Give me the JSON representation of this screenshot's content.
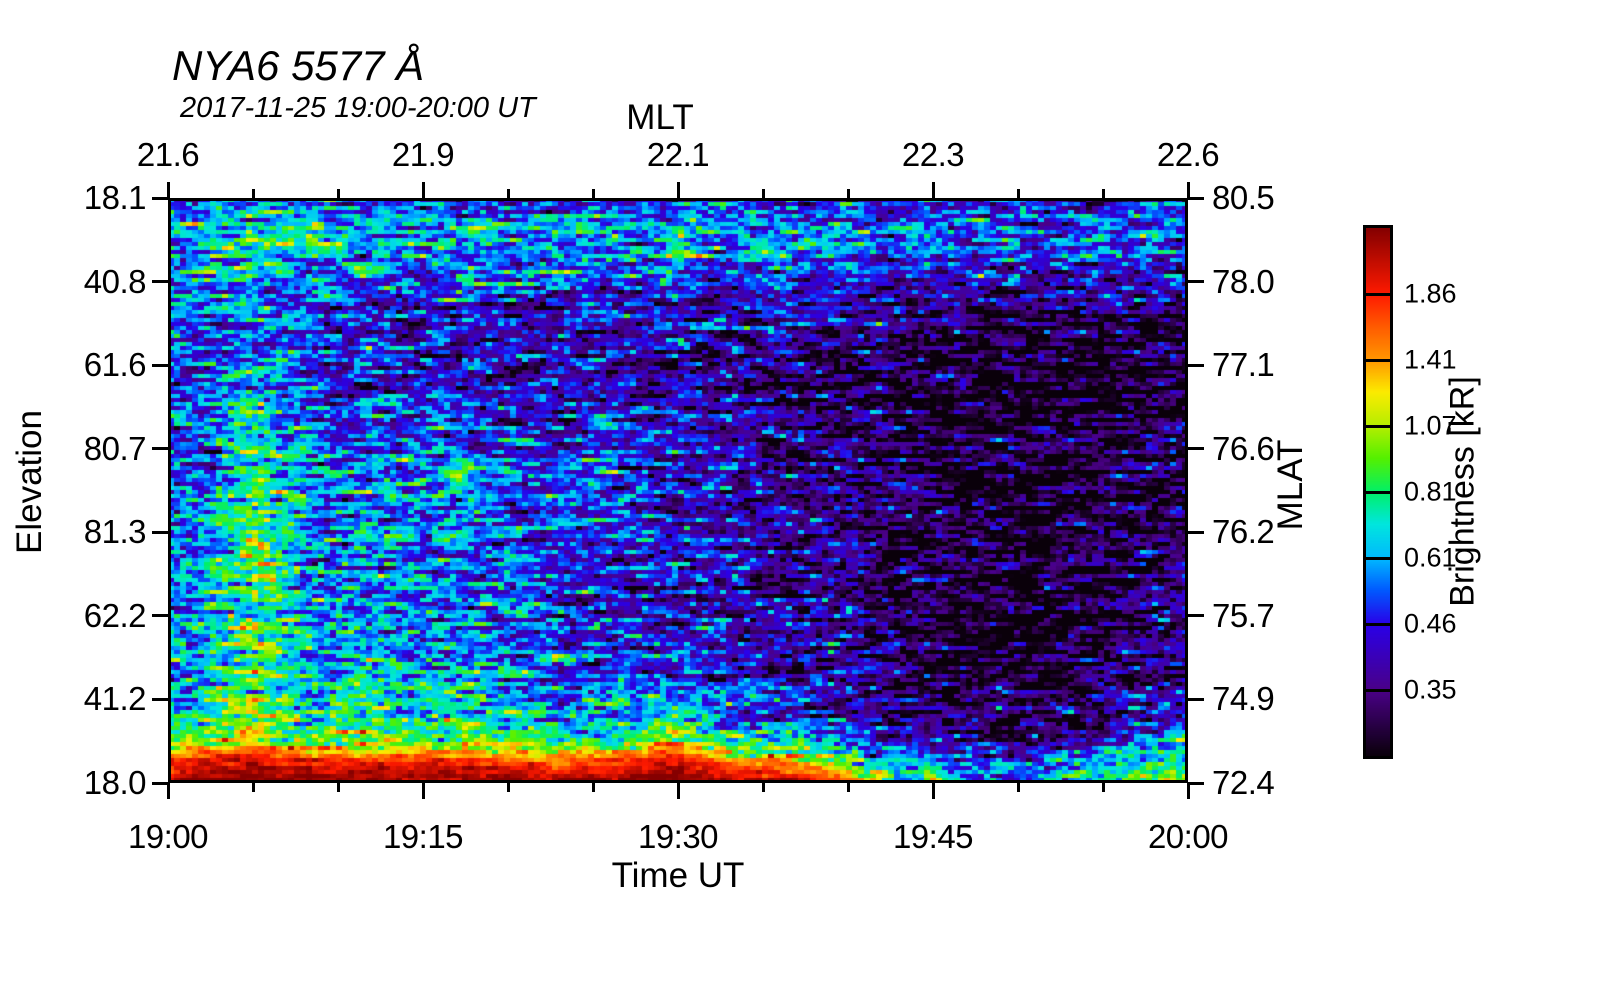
{
  "title": "NYA6 5577 Å",
  "subtitle": "2017-11-25 19:00-20:00 UT",
  "axes": {
    "top": {
      "label": "MLT",
      "ticks": [
        "21.6",
        "21.9",
        "22.1",
        "22.3",
        "22.6"
      ]
    },
    "bottom": {
      "label": "Time UT",
      "ticks": [
        "19:00",
        "19:15",
        "19:30",
        "19:45",
        "20:00"
      ]
    },
    "left": {
      "label": "Elevation",
      "ticks": [
        "18.1",
        "40.8",
        "61.6",
        "80.7",
        "81.3",
        "62.2",
        "41.2",
        "18.0"
      ]
    },
    "right": {
      "label": "MLAT",
      "ticks": [
        "80.5",
        "78.0",
        "77.1",
        "76.6",
        "76.2",
        "75.7",
        "74.9",
        "72.4"
      ]
    }
  },
  "colorbar": {
    "label": "Brightness [kR]",
    "ticks": [
      "1.86",
      "1.41",
      "1.07",
      "0.81",
      "0.61",
      "0.46",
      "0.35"
    ],
    "scale": "log",
    "vmin": 0.265,
    "vmax": 2.46
  },
  "chart_data": {
    "type": "heatmap",
    "title": "NYA6 5577 Å",
    "xlabel": "Time UT",
    "ylabel": "Elevation",
    "x_range_minutes": [
      0,
      60
    ],
    "x_minutes": [
      0,
      2.5,
      5,
      7.5,
      10,
      12.5,
      15,
      17.5,
      20,
      22.5,
      25,
      27.5,
      30,
      32.5,
      35,
      37.5,
      40,
      42.5,
      45,
      47.5,
      50,
      52.5,
      55,
      57.5,
      60
    ],
    "row_fractions": [
      0.0,
      0.055,
      0.115,
      0.17,
      0.23,
      0.3,
      0.37,
      0.44,
      0.51,
      0.58,
      0.65,
      0.72,
      0.79,
      0.855,
      0.905,
      0.935,
      0.962,
      1.0
    ],
    "values_kR": [
      [
        0.48,
        0.52,
        0.58,
        0.52,
        0.5,
        0.5,
        0.48,
        0.48,
        0.47,
        0.46,
        0.46,
        0.45,
        0.45,
        0.44,
        0.44,
        0.44,
        0.43,
        0.42,
        0.42,
        0.42,
        0.41,
        0.41,
        0.41,
        0.42,
        0.42
      ],
      [
        0.62,
        0.68,
        0.78,
        0.72,
        0.66,
        0.65,
        0.64,
        0.65,
        0.63,
        0.62,
        0.63,
        0.62,
        0.62,
        0.6,
        0.62,
        0.61,
        0.58,
        0.56,
        0.55,
        0.56,
        0.54,
        0.53,
        0.52,
        0.54,
        0.55
      ],
      [
        0.55,
        0.6,
        0.68,
        0.62,
        0.58,
        0.57,
        0.56,
        0.56,
        0.55,
        0.54,
        0.55,
        0.54,
        0.54,
        0.52,
        0.53,
        0.52,
        0.5,
        0.48,
        0.47,
        0.47,
        0.46,
        0.45,
        0.45,
        0.46,
        0.47
      ],
      [
        0.5,
        0.54,
        0.58,
        0.52,
        0.48,
        0.47,
        0.46,
        0.46,
        0.45,
        0.44,
        0.45,
        0.44,
        0.44,
        0.42,
        0.42,
        0.41,
        0.4,
        0.38,
        0.37,
        0.36,
        0.35,
        0.35,
        0.35,
        0.36,
        0.37
      ],
      [
        0.46,
        0.5,
        0.54,
        0.47,
        0.44,
        0.43,
        0.42,
        0.42,
        0.41,
        0.4,
        0.41,
        0.4,
        0.4,
        0.38,
        0.38,
        0.37,
        0.35,
        0.33,
        0.32,
        0.31,
        0.3,
        0.3,
        0.3,
        0.31,
        0.32
      ],
      [
        0.44,
        0.48,
        0.58,
        0.5,
        0.44,
        0.43,
        0.42,
        0.43,
        0.41,
        0.4,
        0.4,
        0.39,
        0.38,
        0.36,
        0.35,
        0.34,
        0.32,
        0.3,
        0.29,
        0.28,
        0.27,
        0.27,
        0.27,
        0.28,
        0.29
      ],
      [
        0.46,
        0.52,
        0.72,
        0.58,
        0.48,
        0.5,
        0.46,
        0.48,
        0.44,
        0.42,
        0.42,
        0.4,
        0.38,
        0.36,
        0.34,
        0.33,
        0.31,
        0.29,
        0.28,
        0.27,
        0.26,
        0.26,
        0.27,
        0.28,
        0.29
      ],
      [
        0.48,
        0.55,
        0.85,
        0.66,
        0.55,
        0.58,
        0.52,
        0.55,
        0.5,
        0.46,
        0.46,
        0.44,
        0.42,
        0.4,
        0.37,
        0.35,
        0.33,
        0.3,
        0.29,
        0.28,
        0.27,
        0.27,
        0.28,
        0.29,
        0.3
      ],
      [
        0.5,
        0.58,
        0.95,
        0.7,
        0.58,
        0.62,
        0.55,
        0.6,
        0.52,
        0.5,
        0.55,
        0.46,
        0.44,
        0.42,
        0.38,
        0.36,
        0.34,
        0.31,
        0.3,
        0.29,
        0.28,
        0.28,
        0.29,
        0.3,
        0.31
      ],
      [
        0.52,
        0.6,
        0.92,
        0.68,
        0.56,
        0.6,
        0.54,
        0.58,
        0.5,
        0.48,
        0.5,
        0.45,
        0.43,
        0.41,
        0.37,
        0.35,
        0.33,
        0.3,
        0.29,
        0.28,
        0.28,
        0.28,
        0.3,
        0.32,
        0.33
      ],
      [
        0.52,
        0.6,
        0.85,
        0.66,
        0.56,
        0.58,
        0.54,
        0.56,
        0.5,
        0.47,
        0.48,
        0.44,
        0.43,
        0.4,
        0.37,
        0.35,
        0.36,
        0.31,
        0.29,
        0.28,
        0.27,
        0.28,
        0.3,
        0.33,
        0.35
      ],
      [
        0.54,
        0.62,
        0.8,
        0.64,
        0.56,
        0.58,
        0.54,
        0.55,
        0.5,
        0.48,
        0.47,
        0.44,
        0.43,
        0.41,
        0.38,
        0.36,
        0.34,
        0.3,
        0.28,
        0.27,
        0.26,
        0.27,
        0.29,
        0.32,
        0.35
      ],
      [
        0.58,
        0.66,
        0.85,
        0.68,
        0.6,
        0.62,
        0.58,
        0.58,
        0.54,
        0.52,
        0.5,
        0.48,
        0.47,
        0.44,
        0.4,
        0.38,
        0.35,
        0.31,
        0.29,
        0.28,
        0.27,
        0.28,
        0.3,
        0.34,
        0.38
      ],
      [
        0.64,
        0.72,
        0.95,
        0.76,
        0.68,
        0.7,
        0.66,
        0.66,
        0.6,
        0.58,
        0.56,
        0.54,
        0.55,
        0.5,
        0.46,
        0.42,
        0.38,
        0.33,
        0.31,
        0.3,
        0.29,
        0.3,
        0.33,
        0.38,
        0.44
      ],
      [
        0.72,
        0.8,
        1.05,
        0.85,
        0.78,
        0.8,
        0.76,
        0.78,
        0.7,
        0.66,
        0.64,
        0.75,
        0.9,
        0.62,
        0.58,
        0.52,
        0.44,
        0.36,
        0.33,
        0.32,
        0.31,
        0.32,
        0.36,
        0.42,
        0.52
      ],
      [
        1.0,
        1.1,
        1.45,
        1.15,
        1.05,
        1.08,
        1.02,
        1.05,
        0.95,
        0.88,
        0.85,
        1.05,
        1.3,
        0.85,
        0.8,
        0.7,
        0.55,
        0.44,
        0.4,
        0.38,
        0.37,
        0.39,
        0.44,
        0.52,
        0.68
      ],
      [
        1.8,
        1.95,
        2.2,
        1.9,
        1.85,
        1.9,
        1.8,
        1.85,
        1.7,
        1.6,
        1.55,
        1.8,
        2.0,
        1.5,
        1.45,
        1.3,
        0.95,
        0.62,
        0.55,
        0.5,
        0.48,
        0.52,
        0.6,
        0.75,
        0.95
      ],
      [
        2.6,
        2.6,
        2.7,
        2.6,
        2.6,
        2.6,
        2.6,
        2.6,
        2.55,
        2.45,
        2.4,
        2.6,
        2.65,
        2.4,
        2.3,
        2.1,
        1.9,
        0.95,
        0.68,
        0.62,
        0.6,
        0.64,
        0.75,
        0.95,
        1.15
      ]
    ],
    "colormap_stops": [
      [
        0.0,
        10,
        0,
        10
      ],
      [
        0.125,
        74,
        0,
        135
      ],
      [
        0.25,
        42,
        0,
        232
      ],
      [
        0.315,
        0,
        90,
        255
      ],
      [
        0.375,
        0,
        185,
        255
      ],
      [
        0.44,
        0,
        230,
        222
      ],
      [
        0.5,
        0,
        240,
        105
      ],
      [
        0.565,
        85,
        240,
        0
      ],
      [
        0.625,
        180,
        238,
        0
      ],
      [
        0.69,
        252,
        235,
        0
      ],
      [
        0.75,
        255,
        152,
        0
      ],
      [
        0.815,
        255,
        90,
        0
      ],
      [
        0.875,
        255,
        26,
        0
      ],
      [
        1.0,
        133,
        0,
        0
      ]
    ],
    "noise_sigma": 0.26,
    "seed": 1125
  }
}
